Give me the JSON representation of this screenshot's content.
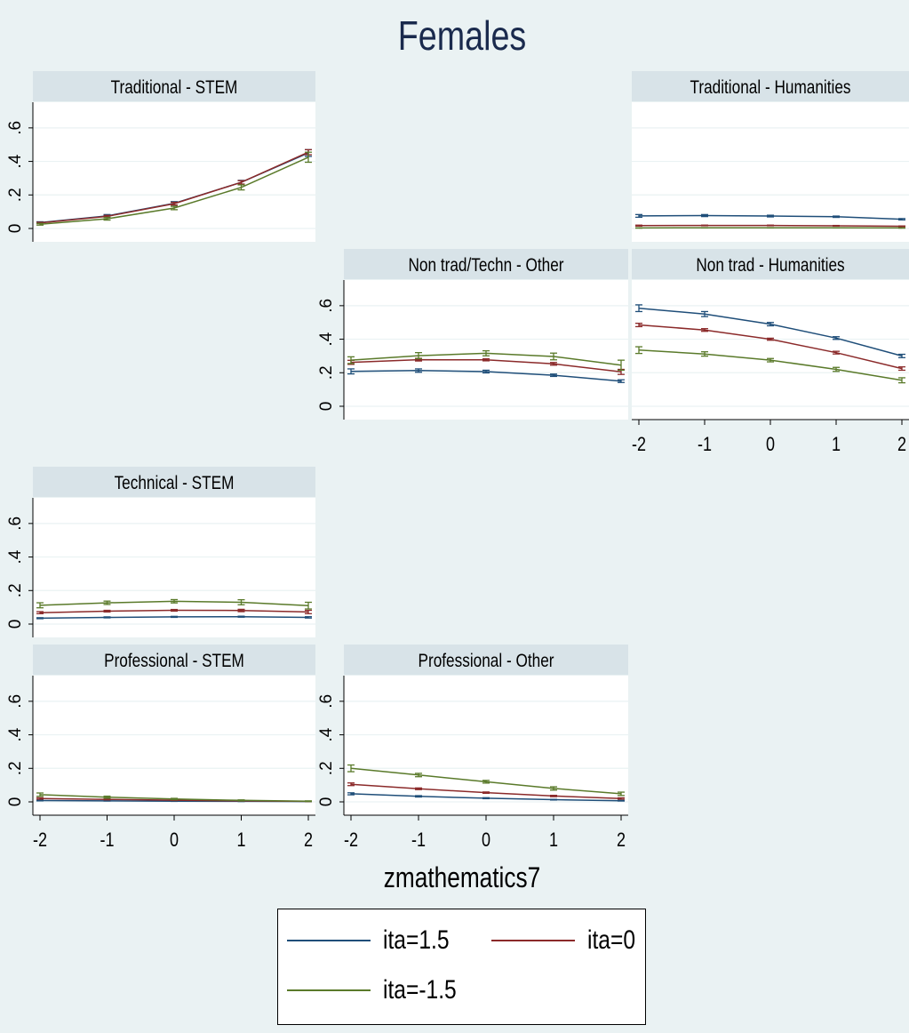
{
  "figure": {
    "title": "Females",
    "xlabel": "zmathematics7",
    "colors": {
      "background": "#eaf2f3",
      "panel_header": "#d8e3e8",
      "title": "#1a2a4d"
    }
  },
  "chart_data": {
    "type": "line",
    "x": [
      -2,
      -1,
      0,
      1,
      2
    ],
    "xticks": [
      "-2",
      "-1",
      "0",
      "1",
      "2"
    ],
    "yticks": [
      "0",
      ".2",
      ".4",
      ".6"
    ],
    "ylim": [
      0,
      0.7
    ],
    "xlim": [
      -2,
      2
    ],
    "error_bars": true,
    "grid": true,
    "legend_position": "bottom",
    "legend": [
      {
        "name": "ita=1.5",
        "color": "#1f4e79"
      },
      {
        "name": "ita=0",
        "color": "#8b2a2a"
      },
      {
        "name": "ita=-1.5",
        "color": "#5a7a2a"
      }
    ],
    "panels": [
      {
        "title": "Traditional - STEM",
        "series": [
          {
            "name": "ita=1.5",
            "values": [
              0.035,
              0.075,
              0.15,
              0.275,
              0.45
            ],
            "errors": [
              0.005,
              0.008,
              0.01,
              0.012,
              0.02
            ]
          },
          {
            "name": "ita=0",
            "values": [
              0.033,
              0.072,
              0.148,
              0.275,
              0.455
            ],
            "errors": [
              0.004,
              0.006,
              0.008,
              0.01,
              0.015
            ]
          },
          {
            "name": "ita=-1.5",
            "values": [
              0.025,
              0.058,
              0.122,
              0.245,
              0.425
            ],
            "errors": [
              0.005,
              0.008,
              0.01,
              0.015,
              0.03
            ]
          }
        ]
      },
      {
        "title": "Traditional - Humanities",
        "series": [
          {
            "name": "ita=1.5",
            "values": [
              0.075,
              0.077,
              0.074,
              0.07,
              0.055
            ],
            "errors": [
              0.008,
              0.006,
              0.005,
              0.004,
              0.004
            ]
          },
          {
            "name": "ita=0",
            "values": [
              0.017,
              0.018,
              0.018,
              0.016,
              0.013
            ],
            "errors": [
              0.003,
              0.002,
              0.002,
              0.002,
              0.002
            ]
          },
          {
            "name": "ita=-1.5",
            "values": [
              0.003,
              0.004,
              0.004,
              0.004,
              0.003
            ],
            "errors": [
              0.001,
              0.001,
              0.001,
              0.001,
              0.001
            ]
          }
        ]
      },
      {
        "title": "Non trad/Techn - Other",
        "series": [
          {
            "name": "ita=1.5",
            "values": [
              0.208,
              0.213,
              0.207,
              0.185,
              0.15
            ],
            "errors": [
              0.015,
              0.01,
              0.008,
              0.007,
              0.008
            ]
          },
          {
            "name": "ita=0",
            "values": [
              0.262,
              0.278,
              0.277,
              0.253,
              0.205
            ],
            "errors": [
              0.012,
              0.008,
              0.006,
              0.008,
              0.015
            ]
          },
          {
            "name": "ita=-1.5",
            "values": [
              0.275,
              0.302,
              0.316,
              0.297,
              0.245
            ],
            "errors": [
              0.02,
              0.018,
              0.015,
              0.02,
              0.03
            ]
          }
        ]
      },
      {
        "title": "Non trad - Humanities",
        "series": [
          {
            "name": "ita=1.5",
            "values": [
              0.585,
              0.55,
              0.49,
              0.407,
              0.3
            ],
            "errors": [
              0.02,
              0.015,
              0.01,
              0.008,
              0.01
            ]
          },
          {
            "name": "ita=0",
            "values": [
              0.485,
              0.455,
              0.4,
              0.32,
              0.225
            ],
            "errors": [
              0.01,
              0.008,
              0.006,
              0.008,
              0.01
            ]
          },
          {
            "name": "ita=-1.5",
            "values": [
              0.335,
              0.312,
              0.275,
              0.22,
              0.155
            ],
            "errors": [
              0.02,
              0.013,
              0.01,
              0.012,
              0.015
            ]
          }
        ]
      },
      {
        "title": "Technical - STEM",
        "series": [
          {
            "name": "ita=1.5",
            "values": [
              0.035,
              0.04,
              0.043,
              0.044,
              0.04
            ],
            "errors": [
              0.003,
              0.003,
              0.003,
              0.003,
              0.004
            ]
          },
          {
            "name": "ita=0",
            "values": [
              0.068,
              0.077,
              0.082,
              0.081,
              0.072
            ],
            "errors": [
              0.006,
              0.005,
              0.005,
              0.007,
              0.01
            ]
          },
          {
            "name": "ita=-1.5",
            "values": [
              0.112,
              0.127,
              0.136,
              0.13,
              0.11
            ],
            "errors": [
              0.015,
              0.01,
              0.01,
              0.015,
              0.02
            ]
          }
        ]
      },
      {
        "title": "Professional - STEM",
        "series": [
          {
            "name": "ita=1.5",
            "values": [
              0.008,
              0.006,
              0.004,
              0.003,
              0.002
            ],
            "errors": [
              0.002,
              0.001,
              0.001,
              0.001,
              0.001
            ]
          },
          {
            "name": "ita=0",
            "values": [
              0.02,
              0.015,
              0.01,
              0.006,
              0.003
            ],
            "errors": [
              0.004,
              0.003,
              0.002,
              0.001,
              0.001
            ]
          },
          {
            "name": "ita=-1.5",
            "values": [
              0.043,
              0.028,
              0.017,
              0.009,
              0.004
            ],
            "errors": [
              0.01,
              0.006,
              0.004,
              0.003,
              0.002
            ]
          }
        ]
      },
      {
        "title": "Professional - Other",
        "series": [
          {
            "name": "ita=1.5",
            "values": [
              0.048,
              0.033,
              0.022,
              0.013,
              0.007
            ],
            "errors": [
              0.006,
              0.004,
              0.003,
              0.002,
              0.002
            ]
          },
          {
            "name": "ita=0",
            "values": [
              0.105,
              0.078,
              0.055,
              0.035,
              0.02
            ],
            "errors": [
              0.008,
              0.005,
              0.004,
              0.004,
              0.004
            ]
          },
          {
            "name": "ita=-1.5",
            "values": [
              0.2,
              0.16,
              0.12,
              0.08,
              0.048
            ],
            "errors": [
              0.02,
              0.01,
              0.008,
              0.01,
              0.01
            ]
          }
        ]
      }
    ]
  }
}
